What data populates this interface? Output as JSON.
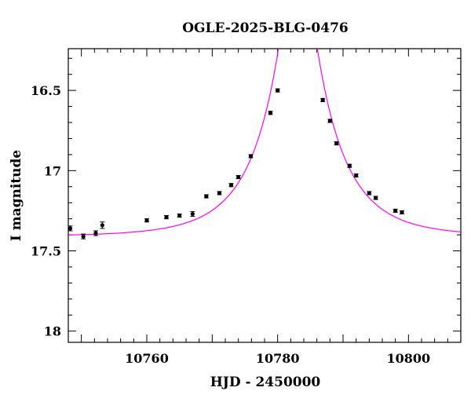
{
  "chart_data": {
    "type": "scatter",
    "title": "OGLE-2025-BLG-0476",
    "xlabel": "HJD - 2450000",
    "ylabel": "I magnitude",
    "xlim": [
      10748,
      10808
    ],
    "ylim": [
      18.07,
      16.24
    ],
    "y_inverted": true,
    "x_ticks": [
      10760,
      10780,
      10800
    ],
    "x_tick_labels": [
      "10760",
      "10780",
      "10800"
    ],
    "y_ticks": [
      16.5,
      17,
      17.5,
      18
    ],
    "y_tick_labels": [
      "16.5",
      "17",
      "17.5",
      "18"
    ],
    "grid": false,
    "series": [
      {
        "kind": "points-with-errorbars",
        "color": "#000000",
        "points": [
          {
            "x": 10748.3,
            "y": 17.36,
            "err": 0.015
          },
          {
            "x": 10750.3,
            "y": 17.41,
            "err": 0.015
          },
          {
            "x": 10752.2,
            "y": 17.39,
            "err": 0.015
          },
          {
            "x": 10753.2,
            "y": 17.34,
            "err": 0.02
          },
          {
            "x": 10760.0,
            "y": 17.31,
            "err": 0.01
          },
          {
            "x": 10763.0,
            "y": 17.29,
            "err": 0.01
          },
          {
            "x": 10765.0,
            "y": 17.28,
            "err": 0.01
          },
          {
            "x": 10767.0,
            "y": 17.27,
            "err": 0.015
          },
          {
            "x": 10769.1,
            "y": 17.16,
            "err": 0.01
          },
          {
            "x": 10771.1,
            "y": 17.14,
            "err": 0.01
          },
          {
            "x": 10772.9,
            "y": 17.09,
            "err": 0.01
          },
          {
            "x": 10774.0,
            "y": 17.04,
            "err": 0.01
          },
          {
            "x": 10775.9,
            "y": 16.91,
            "err": 0.01
          },
          {
            "x": 10778.9,
            "y": 16.64,
            "err": 0.01
          },
          {
            "x": 10780.0,
            "y": 16.5,
            "err": 0.01
          },
          {
            "x": 10786.9,
            "y": 16.56,
            "err": 0.01
          },
          {
            "x": 10788.0,
            "y": 16.69,
            "err": 0.01
          },
          {
            "x": 10789.0,
            "y": 16.83,
            "err": 0.01
          },
          {
            "x": 10791.0,
            "y": 16.97,
            "err": 0.01
          },
          {
            "x": 10792.0,
            "y": 17.03,
            "err": 0.01
          },
          {
            "x": 10794.0,
            "y": 17.14,
            "err": 0.01
          },
          {
            "x": 10795.0,
            "y": 17.17,
            "err": 0.01
          },
          {
            "x": 10798.0,
            "y": 17.25,
            "err": 0.01
          },
          {
            "x": 10799.0,
            "y": 17.26,
            "err": 0.01
          }
        ]
      },
      {
        "kind": "model-curve",
        "color": "#ff00ff",
        "model": "PSPL",
        "params": {
          "t0": 10783.1,
          "tE": 9.5,
          "u0": 0.17,
          "I_base": 17.41
        }
      }
    ]
  }
}
